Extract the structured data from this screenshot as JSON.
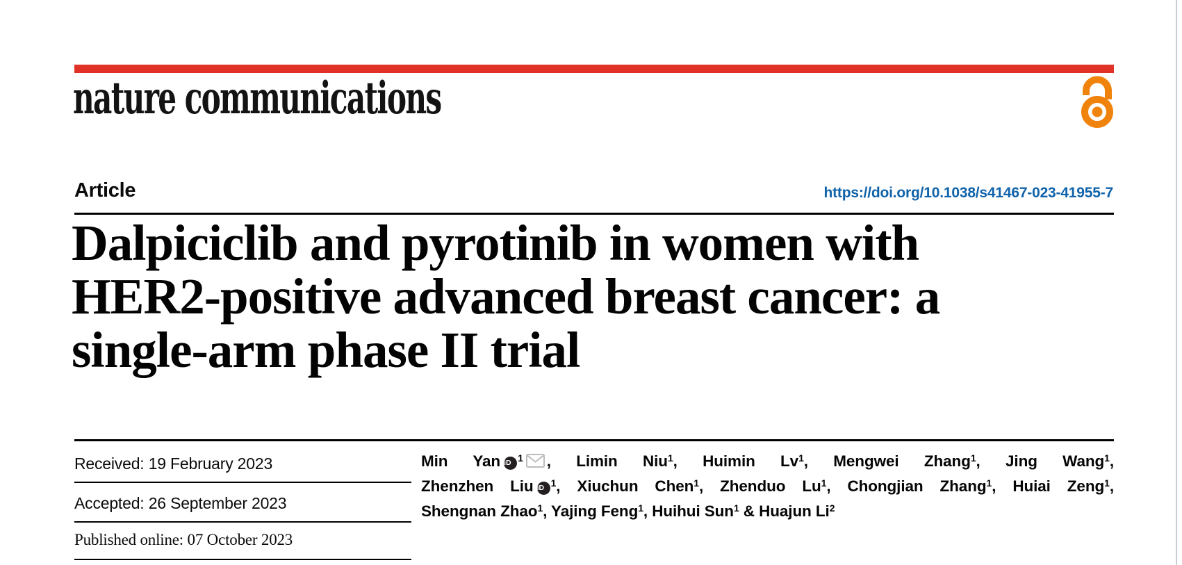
{
  "brand": {
    "logo_text": "nature communications"
  },
  "header": {
    "article_label": "Article",
    "doi_text": "https://doi.org/10.1038/s41467-023-41955-7"
  },
  "article": {
    "title_lines": [
      "Dalpiciclib and pyrotinib in women with",
      "HER2-positive advanced breast cancer: a",
      "single-arm phase II trial"
    ]
  },
  "dates": [
    {
      "label": "Received:",
      "value": "19 February 2023"
    },
    {
      "label": "Accepted:",
      "value": "26 September 2023"
    },
    {
      "label": "Published online:",
      "value": "07 October 2023"
    }
  ],
  "authors": {
    "lines": [
      [
        {
          "name": "Min Yan",
          "orcid": true,
          "sup": "1",
          "email": true,
          "sep": ", "
        },
        {
          "name": "Limin Niu",
          "sup": "1",
          "sep": ", "
        },
        {
          "name": "Huimin Lv",
          "sup": "1",
          "sep": ", "
        },
        {
          "name": "Mengwei Zhang",
          "sup": "1",
          "sep": ", "
        },
        {
          "name": "Jing Wang",
          "sup": "1",
          "sep": ","
        }
      ],
      [
        {
          "name": "Zhenzhen Liu",
          "orcid": true,
          "sup": "1",
          "sep": ", "
        },
        {
          "name": "Xiuchun Chen",
          "sup": "1",
          "sep": ", "
        },
        {
          "name": "Zhenduo Lu",
          "sup": "1",
          "sep": ", "
        },
        {
          "name": "Chongjian Zhang",
          "sup": "1",
          "sep": ", "
        },
        {
          "name": "Huiai Zeng",
          "sup": "1",
          "sep": ","
        }
      ],
      [
        {
          "name": "Shengnan Zhao",
          "sup": "1",
          "sep": ", "
        },
        {
          "name": "Yajing Feng",
          "sup": "1",
          "sep": ", "
        },
        {
          "name": "Huihui Sun",
          "sup": "1",
          "sep": " & "
        },
        {
          "name": "Huajun Li",
          "sup": "2",
          "sep": ""
        }
      ]
    ]
  },
  "icons": {
    "orcid_label": "iD",
    "open_access_label": "open-access-padlock",
    "email_label": "envelope"
  },
  "colors": {
    "brand_red": "#e23227",
    "link_blue": "#0f63aa",
    "open_access_orange": "#f0830c",
    "orcid_black": "#242021",
    "envelope_gray": "#bdbdbd",
    "page_edge_gray": "#cbced2"
  }
}
